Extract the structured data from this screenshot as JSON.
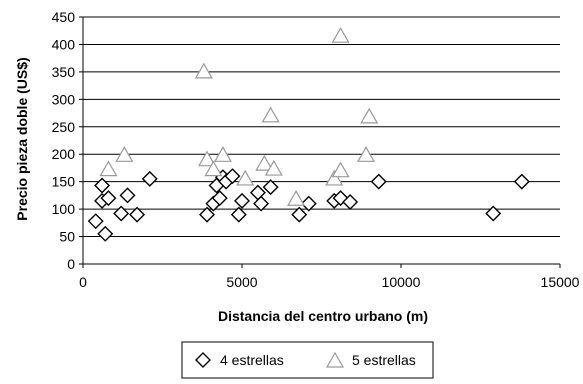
{
  "chart_data": {
    "type": "scatter",
    "xlabel": "Distancia del centro urbano (m)",
    "ylabel": "Precio pieza doble (US$)",
    "xlim": [
      0,
      15000
    ],
    "ylim": [
      0,
      450
    ],
    "x_ticks": [
      "0",
      "5000",
      "10000",
      "15000"
    ],
    "y_ticks": [
      "0",
      "50",
      "100",
      "150",
      "200",
      "250",
      "300",
      "350",
      "400",
      "450"
    ],
    "grid": "horizontal",
    "legend_position": "bottom",
    "series": [
      {
        "name": "4 estrellas",
        "marker": "diamond",
        "color": "#000000",
        "points": [
          [
            400,
            78
          ],
          [
            600,
            143
          ],
          [
            600,
            115
          ],
          [
            700,
            55
          ],
          [
            800,
            120
          ],
          [
            1200,
            92
          ],
          [
            1400,
            125
          ],
          [
            1700,
            90
          ],
          [
            2100,
            155
          ],
          [
            3900,
            90
          ],
          [
            4100,
            110
          ],
          [
            4200,
            143
          ],
          [
            4300,
            120
          ],
          [
            4400,
            158
          ],
          [
            4500,
            150
          ],
          [
            4700,
            160
          ],
          [
            4900,
            90
          ],
          [
            5000,
            115
          ],
          [
            5500,
            130
          ],
          [
            5600,
            110
          ],
          [
            5900,
            140
          ],
          [
            6800,
            90
          ],
          [
            7100,
            110
          ],
          [
            7900,
            115
          ],
          [
            8100,
            120
          ],
          [
            8400,
            113
          ],
          [
            9300,
            150
          ],
          [
            12900,
            92
          ],
          [
            13800,
            150
          ]
        ]
      },
      {
        "name": "5 estrellas",
        "marker": "triangle",
        "color": "#999999",
        "points": [
          [
            800,
            172
          ],
          [
            1300,
            198
          ],
          [
            3800,
            350
          ],
          [
            3900,
            190
          ],
          [
            4100,
            172
          ],
          [
            4400,
            198
          ],
          [
            5100,
            155
          ],
          [
            5700,
            182
          ],
          [
            5900,
            270
          ],
          [
            6000,
            173
          ],
          [
            6700,
            118
          ],
          [
            7900,
            155
          ],
          [
            8100,
            415
          ],
          [
            8100,
            170
          ],
          [
            9000,
            268
          ],
          [
            8900,
            198
          ]
        ]
      }
    ]
  }
}
